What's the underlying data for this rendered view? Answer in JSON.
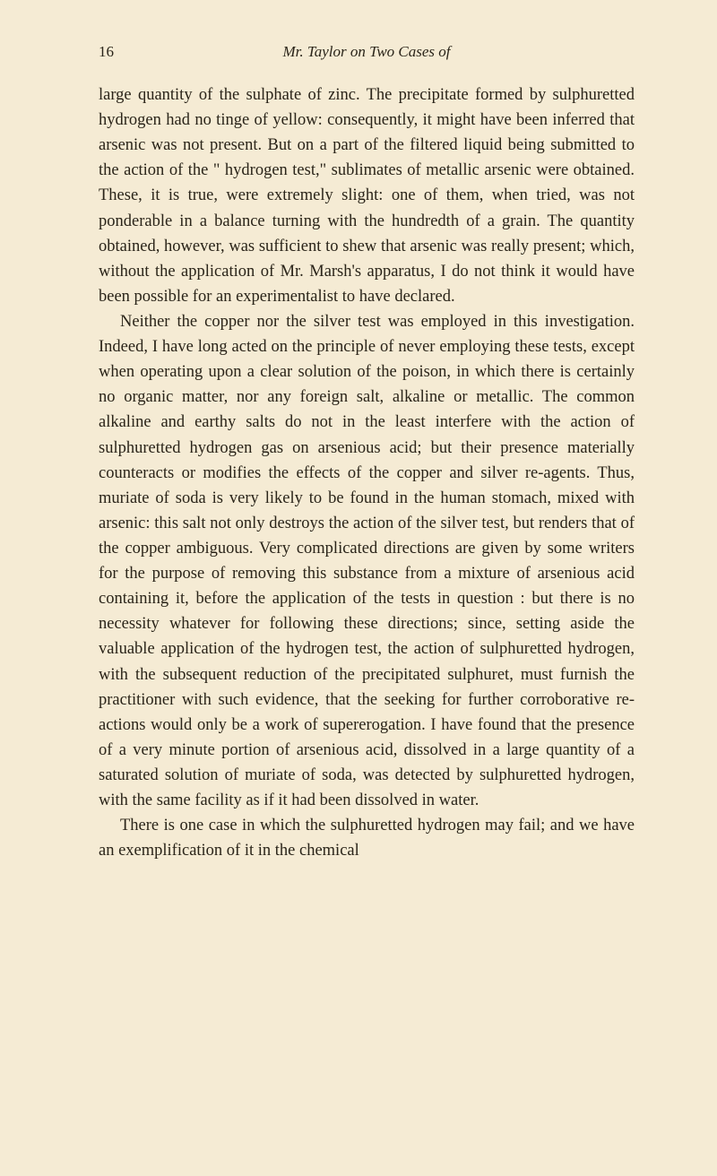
{
  "page": {
    "number": "16",
    "header_title": "Mr. Taylor on Two Cases of",
    "background_color": "#f5ebd4",
    "text_color": "#2a2419",
    "font_family": "Georgia, serif",
    "body_fontsize": 18.5,
    "line_height": 1.52,
    "header_fontsize": 17
  },
  "paragraphs": [
    {
      "text": "large quantity of the sulphate of zinc. The precipitate formed by sulphuretted hydrogen had no tinge of yellow: consequently, it might have been inferred that arsenic was not present. But on a part of the filtered liquid being submitted to the action of the \" hydrogen test,\" sublimates of metallic arsenic were obtained. These, it is true, were extremely slight: one of them, when tried, was not ponderable in a balance turning with the hundredth of a grain. The quantity obtained, however, was sufficient to shew that arsenic was really present; which, without the application of Mr. Marsh's apparatus, I do not think it would have been possible for an experimentalist to have declared.",
      "indent": false
    },
    {
      "text": "Neither the copper nor the silver test was employed in this investigation. Indeed, I have long acted on the principle of never employing these tests, except when operating upon a clear solution of the poison, in which there is certainly no organic matter, nor any foreign salt, alkaline or metallic. The common alkaline and earthy salts do not in the least interfere with the action of sulphuretted hydrogen gas on arsenious acid; but their presence materially counteracts or modifies the effects of the copper and silver re-agents. Thus, muriate of soda is very likely to be found in the human stomach, mixed with arsenic: this salt not only destroys the action of the silver test, but renders that of the copper ambiguous. Very complicated directions are given by some writers for the purpose of removing this substance from a mixture of arsenious acid containing it, before the application of the tests in question : but there is no necessity whatever for following these directions; since, setting aside the valuable application of the hydrogen test, the action of sulphuretted hydrogen, with the subsequent reduction of the precipitated sulphuret, must furnish the practitioner with such evidence, that the seeking for further corroborative re-actions would only be a work of supererogation. I have found that the presence of a very minute portion of arsenious acid, dissolved in a large quantity of a saturated solution of muriate of soda, was detected by sulphuretted hydrogen, with the same facility as if it had been dissolved in water.",
      "indent": true
    },
    {
      "text": "There is one case in which the sulphuretted hydrogen may fail; and we have an exemplification of it in the chemical",
      "indent": true
    }
  ]
}
